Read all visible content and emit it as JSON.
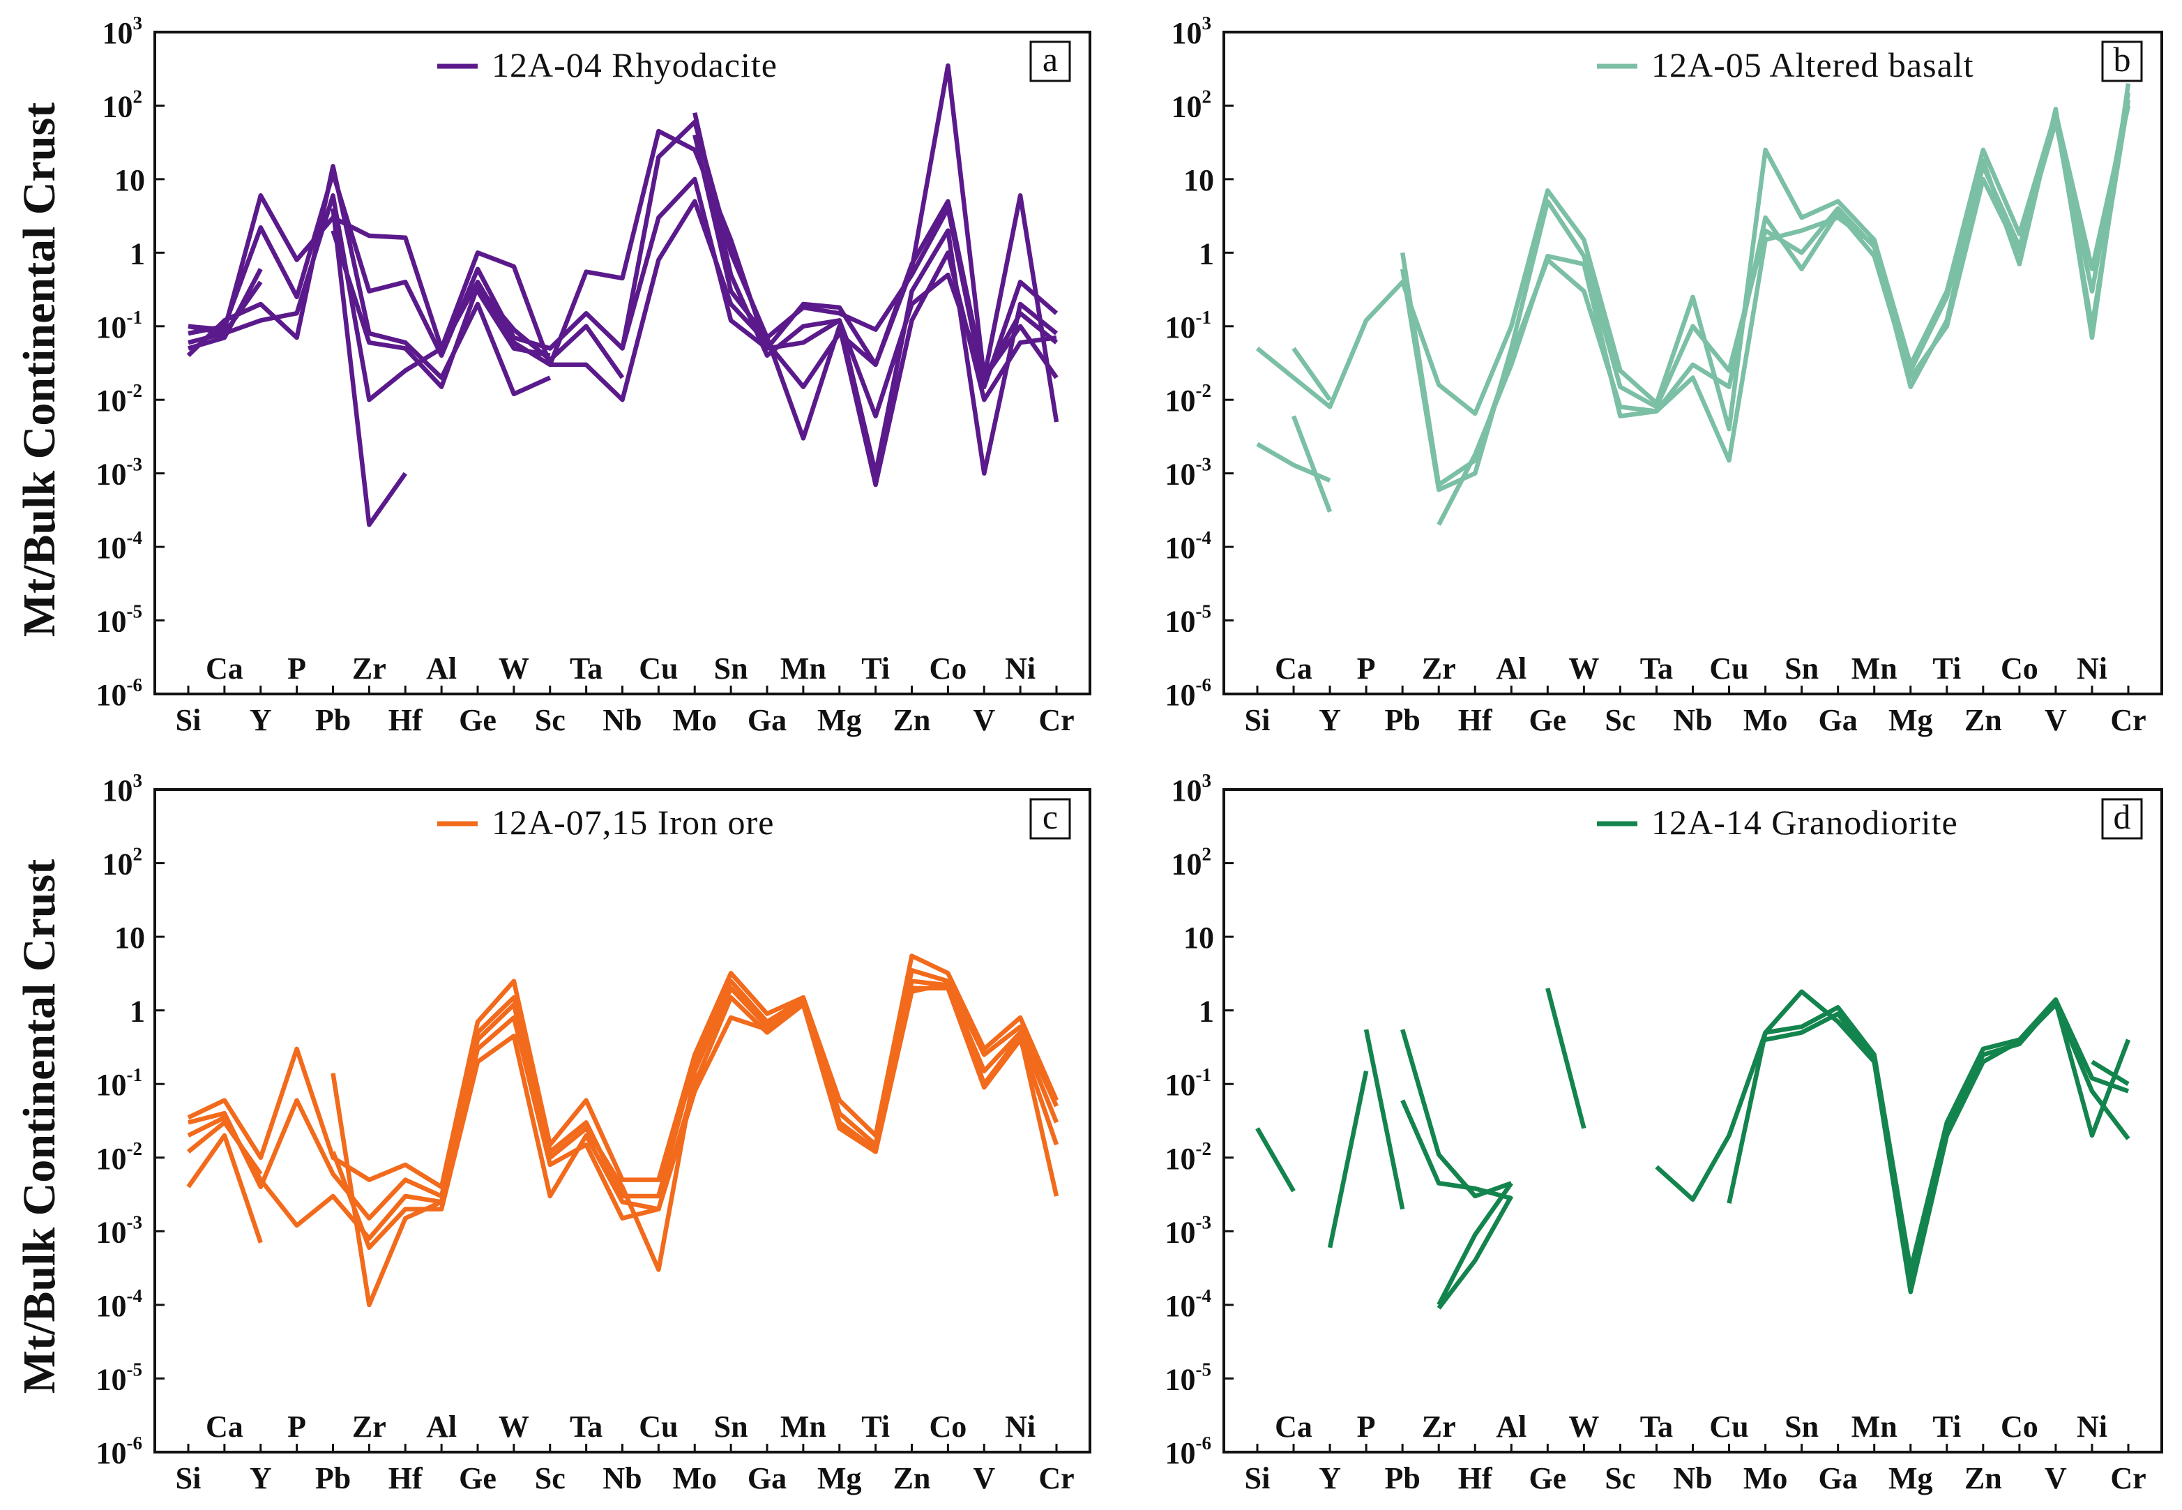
{
  "figure": {
    "ylabel": "Mt/Bulk Continental Crust",
    "y_ticks": [
      {
        "base": "10",
        "exp": "3"
      },
      {
        "base": "10",
        "exp": "2"
      },
      {
        "base": "10",
        "exp": ""
      },
      {
        "base": "1",
        "exp": ""
      },
      {
        "base": "10",
        "exp": "-1"
      },
      {
        "base": "10",
        "exp": "-2"
      },
      {
        "base": "10",
        "exp": "-3"
      },
      {
        "base": "10",
        "exp": "-4"
      },
      {
        "base": "10",
        "exp": "-5"
      },
      {
        "base": "10",
        "exp": "-6"
      }
    ]
  },
  "chart_data": [
    {
      "type": "line",
      "panel": "a",
      "legend": "12A-04 Rhyodacite",
      "color": "#5b1a8b",
      "elements_bottom": [
        "Si",
        "Y",
        "Pb",
        "Hf",
        "Ge",
        "Sc",
        "Nb",
        "Mo",
        "Ga",
        "Mg",
        "Zn",
        "V",
        "Cr"
      ],
      "elements_top": [
        "Ca",
        "P",
        "Zr",
        "Al",
        "W",
        "Ta",
        "Cu",
        "Sn",
        "Mn",
        "Ti",
        "Co",
        "Ni"
      ],
      "x_order": [
        "Si",
        "Ca",
        "Y",
        "P",
        "Pb",
        "Zr",
        "Hf",
        "Al",
        "Ge",
        "W",
        "Sc",
        "Ta",
        "Nb",
        "Cu",
        "Mo",
        "Sn",
        "Ga",
        "Mn",
        "Mg",
        "Ti",
        "Zn",
        "Co",
        "V",
        "Ni",
        "Cr"
      ],
      "yscale": "log",
      "ylim": [
        1e-06,
        1000
      ],
      "series": [
        {
          "values": [
            0.1,
            0.09,
            6,
            0.8,
            3,
            1.7,
            1.6,
            0.05,
            1,
            0.65,
            0.03,
            0.55,
            0.45,
            45,
            25,
            1.5,
            0.05,
            0.2,
            0.18,
            0.03,
            0.6,
            350,
            0.02,
            6,
            0.005
          ]
        },
        {
          "values": [
            0.08,
            0.1,
            2.2,
            0.25,
            12,
            0.3,
            0.4,
            0.04,
            0.6,
            0.07,
            0.05,
            0.15,
            0.05,
            20,
            60,
            1,
            0.07,
            0.18,
            0.15,
            0.09,
            0.5,
            4,
            0.015,
            0.4,
            0.15
          ]
        },
        {
          "values": [
            0.05,
            0.07,
            0.6,
            null,
            2,
            0.06,
            0.05,
            0.015,
            0.35,
            0.09,
            0.035,
            0.1,
            0.02,
            null,
            80,
            0.5,
            0.04,
            0.1,
            0.12,
            0.001,
            0.3,
            2,
            0.001,
            0.2,
            0.08
          ]
        },
        {
          "values": [
            0.1,
            0.08,
            0.4,
            null,
            4,
            0.0002,
            0.001,
            null,
            0.3,
            0.05,
            0.04,
            null,
            0.005,
            null,
            40,
            0.3,
            0.07,
            0.003,
            0.1,
            0.0007,
            0.12,
            1,
            0.01,
            0.06,
            0.07
          ]
        },
        {
          "values": [
            0.04,
            0.12,
            0.2,
            0.07,
            15,
            0.08,
            0.06,
            0.02,
            0.2,
            0.012,
            0.02,
            null,
            0.05,
            3,
            10,
            0.12,
            0.05,
            0.06,
            0.12,
            0.006,
            0.2,
            0.5,
            0.02,
            0.15,
            0.06
          ]
        },
        {
          "values": [
            0.06,
            0.08,
            0.12,
            0.15,
            6,
            0.01,
            0.025,
            0.05,
            0.4,
            0.06,
            0.03,
            0.03,
            0.01,
            0.8,
            5,
            0.2,
            0.06,
            0.015,
            0.08,
            0.03,
            0.7,
            5,
            0.02,
            0.1,
            0.02
          ]
        }
      ]
    },
    {
      "type": "line",
      "panel": "b",
      "legend": "12A-05 Altered basalt",
      "color": "#7bbfa5",
      "elements_bottom": [
        "Si",
        "Y",
        "Pb",
        "Hf",
        "Ge",
        "Sc",
        "Nb",
        "Mo",
        "Ga",
        "Mg",
        "Zn",
        "V",
        "Cr"
      ],
      "elements_top": [
        "Ca",
        "P",
        "Zr",
        "Al",
        "W",
        "Ta",
        "Cu",
        "Sn",
        "Mn",
        "Ti",
        "Co",
        "Ni"
      ],
      "x_order": [
        "Si",
        "Ca",
        "Y",
        "P",
        "Pb",
        "Zr",
        "Hf",
        "Al",
        "Ge",
        "W",
        "Sc",
        "Ta",
        "Nb",
        "Cu",
        "Mo",
        "Sn",
        "Ga",
        "Mn",
        "Mg",
        "Ti",
        "Zn",
        "Co",
        "V",
        "Ni",
        "Cr"
      ],
      "yscale": "log",
      "ylim": [
        1e-06,
        1000
      ],
      "series": [
        {
          "values": [
            0.05,
            0.02,
            0.008,
            0.12,
            0.4,
            0.016,
            0.0065,
            0.1,
            7,
            1.5,
            0.025,
            0.009,
            0.25,
            0.004,
            25,
            3,
            5,
            1.5,
            0.03,
            0.3,
            25,
            1.8,
            80,
            0.6,
            100
          ]
        },
        {
          "values": [
            0.0025,
            0.0013,
            0.0008,
            null,
            0.6,
            0.0006,
            0.001,
            0.05,
            5,
            0.9,
            0.015,
            0.008,
            0.1,
            0.025,
            2,
            1,
            4,
            1.2,
            0.025,
            0.25,
            15,
            1.2,
            60,
            0.3,
            150
          ]
        },
        {
          "values": [
            null,
            0.05,
            0.01,
            null,
            1,
            0.0007,
            0.0015,
            0.04,
            0.8,
            0.3,
            0.008,
            0.007,
            0.03,
            0.015,
            3,
            0.6,
            3.5,
            0.9,
            0.02,
            0.1,
            10,
            1,
            70,
            0.1,
            120
          ]
        },
        {
          "values": [
            null,
            0.006,
            0.0003,
            null,
            null,
            0.0002,
            0.0018,
            0.03,
            0.9,
            0.7,
            0.006,
            0.007,
            0.02,
            0.0015,
            1.5,
            2,
            3,
            1.3,
            0.015,
            0.12,
            18,
            0.7,
            90,
            0.07,
            200
          ]
        }
      ]
    },
    {
      "type": "line",
      "panel": "c",
      "legend": "12A-07,15 Iron ore",
      "color": "#f26a1b",
      "elements_bottom": [
        "Si",
        "Y",
        "Pb",
        "Hf",
        "Ge",
        "Sc",
        "Nb",
        "Mo",
        "Ga",
        "Mg",
        "Zn",
        "V",
        "Cr"
      ],
      "elements_top": [
        "Ca",
        "P",
        "Zr",
        "Al",
        "W",
        "Ta",
        "Cu",
        "Sn",
        "Mn",
        "Ti",
        "Co",
        "Ni"
      ],
      "x_order": [
        "Si",
        "Ca",
        "Y",
        "P",
        "Pb",
        "Zr",
        "Hf",
        "Al",
        "Ge",
        "W",
        "Sc",
        "Ta",
        "Nb",
        "Cu",
        "Mo",
        "Sn",
        "Ga",
        "Mn",
        "Mg",
        "Ti",
        "Zn",
        "Co",
        "V",
        "Ni",
        "Cr"
      ],
      "yscale": "log",
      "ylim": [
        1e-06,
        1000
      ],
      "series": [
        {
          "values": [
            0.035,
            0.06,
            0.01,
            0.3,
            0.01,
            0.005,
            0.008,
            0.004,
            0.7,
            2.5,
            0.015,
            0.06,
            0.005,
            0.005,
            0.25,
            3.2,
            0.9,
            1.5,
            0.06,
            0.02,
            5.5,
            3.2,
            0.3,
            0.8,
            0.06
          ]
        },
        {
          "values": [
            0.03,
            0.04,
            0.004,
            0.06,
            0.006,
            0.0015,
            0.005,
            0.003,
            0.5,
            1.5,
            0.012,
            0.03,
            0.003,
            0.003,
            0.2,
            2.5,
            0.7,
            1.4,
            0.04,
            0.015,
            3.5,
            2.5,
            0.25,
            0.6,
            0.05
          ]
        },
        {
          "values": [
            0.02,
            0.035,
            0.005,
            0.0012,
            0.003,
            0.0008,
            0.003,
            0.0025,
            0.4,
            1.2,
            0.01,
            0.025,
            0.004,
            0.0003,
            0.15,
            2,
            0.6,
            1.3,
            0.03,
            0.012,
            2.5,
            2.2,
            0.15,
            0.5,
            0.03
          ]
        },
        {
          "values": [
            0.004,
            0.02,
            0.0007,
            null,
            0.14,
            0.0001,
            0.0015,
            0.0025,
            0.3,
            0.8,
            0.008,
            0.015,
            0.0015,
            0.002,
            0.1,
            1.5,
            0.5,
            1.2,
            0.03,
            0.013,
            2,
            2,
            0.09,
            0.4,
            0.015
          ]
        },
        {
          "values": [
            0.012,
            0.03,
            0.006,
            null,
            0.012,
            0.0006,
            0.002,
            0.002,
            0.2,
            0.45,
            0.003,
            0.02,
            0.0025,
            0.002,
            0.08,
            0.8,
            0.55,
            1.2,
            0.025,
            0.012,
            1.8,
            2.3,
            0.1,
            0.45,
            0.003
          ]
        }
      ]
    },
    {
      "type": "line",
      "panel": "d",
      "legend": "12A-14 Granodiorite",
      "color": "#13844d",
      "elements_bottom": [
        "Si",
        "Y",
        "Pb",
        "Hf",
        "Ge",
        "Sc",
        "Nb",
        "Mo",
        "Ga",
        "Mg",
        "Zn",
        "V",
        "Cr"
      ],
      "elements_top": [
        "Ca",
        "P",
        "Zr",
        "Al",
        "W",
        "Ta",
        "Cu",
        "Sn",
        "Mn",
        "Ti",
        "Co",
        "Ni"
      ],
      "x_order": [
        "Si",
        "Ca",
        "Y",
        "P",
        "Pb",
        "Zr",
        "Hf",
        "Al",
        "Ge",
        "W",
        "Sc",
        "Ta",
        "Nb",
        "Cu",
        "Mo",
        "Sn",
        "Ga",
        "Mn",
        "Mg",
        "Ti",
        "Zn",
        "Co",
        "V",
        "Ni",
        "Cr"
      ],
      "yscale": "log",
      "ylim": [
        1e-06,
        1000
      ],
      "series": [
        {
          "values": [
            0.025,
            0.0035,
            null,
            null,
            null,
            null,
            null,
            null,
            null,
            null,
            null,
            0.0075,
            0.0027,
            0.02,
            0.5,
            0.6,
            1.1,
            0.25,
            0.0003,
            0.03,
            0.3,
            0.4,
            1.4,
            0.12,
            0.08
          ]
        },
        {
          "values": [
            null,
            null,
            0.0006,
            0.15,
            null,
            null,
            null,
            null,
            2,
            0.025,
            null,
            null,
            null,
            0.0024,
            0.5,
            1.8,
            0.7,
            0.2,
            0.0002,
            0.025,
            0.25,
            0.35,
            1.3,
            0.02,
            0.4
          ]
        },
        {
          "values": [
            null,
            null,
            null,
            0.55,
            0.002,
            null,
            null,
            null,
            null,
            null,
            null,
            null,
            null,
            null,
            0.4,
            0.5,
            0.9,
            0.2,
            0.00015,
            0.02,
            0.2,
            0.38,
            1.2,
            0.08,
            0.018
          ]
        },
        {
          "values": [
            null,
            null,
            null,
            null,
            0.55,
            0.011,
            0.003,
            0.0045,
            null,
            null,
            null,
            null,
            null,
            null,
            null,
            null,
            null,
            null,
            null,
            null,
            null,
            null,
            null,
            0.2,
            0.1
          ]
        },
        {
          "values": [
            null,
            null,
            null,
            null,
            0.06,
            0.0045,
            0.0038,
            0.0028,
            null,
            null,
            null,
            null,
            null,
            null,
            null,
            null,
            null,
            null,
            null,
            null,
            null,
            null,
            null,
            null,
            null
          ]
        },
        {
          "values": [
            null,
            null,
            null,
            null,
            null,
            0.0001,
            0.0009,
            0.0045,
            null,
            null,
            null,
            null,
            null,
            null,
            null,
            null,
            null,
            null,
            null,
            null,
            null,
            null,
            null,
            null,
            null
          ]
        },
        {
          "values": [
            null,
            null,
            null,
            null,
            null,
            9e-05,
            0.0004,
            0.003,
            null,
            null,
            null,
            null,
            null,
            null,
            null,
            null,
            null,
            null,
            null,
            null,
            null,
            null,
            null,
            null,
            null
          ]
        }
      ]
    }
  ]
}
